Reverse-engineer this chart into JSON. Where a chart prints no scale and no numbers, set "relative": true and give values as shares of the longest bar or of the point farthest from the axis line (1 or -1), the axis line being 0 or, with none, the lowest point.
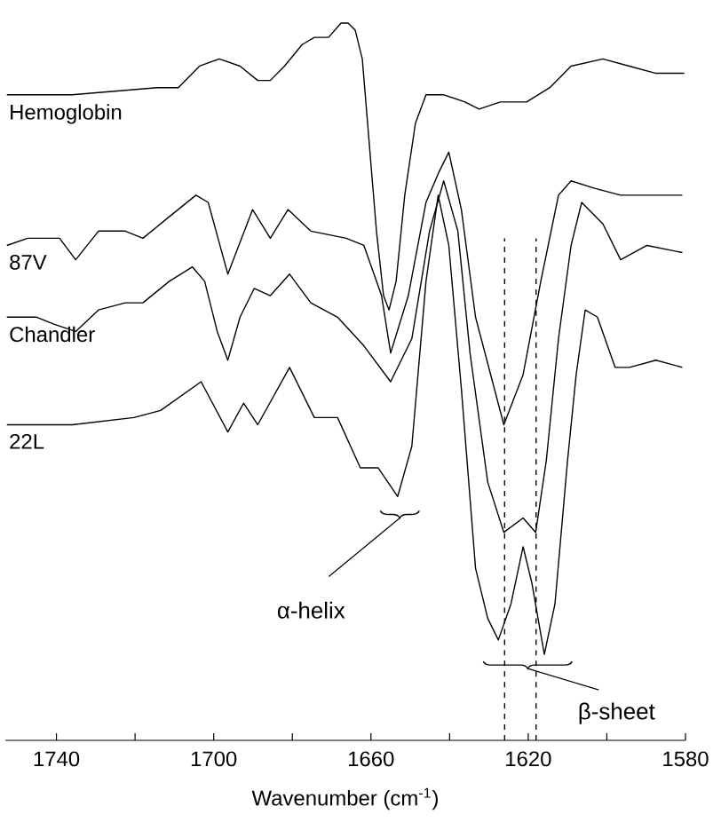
{
  "chart_data": {
    "type": "line",
    "relative": true,
    "xlabel": "Wavenumber (cm$^{-1}$)",
    "xlim": [
      1753,
      1580
    ],
    "xticks": [
      1740,
      {
        "value": 1720,
        "label": null
      },
      1700,
      {
        "value": 1680,
        "label": null
      },
      1660,
      {
        "value": 1640,
        "label": null
      },
      1620,
      {
        "value": 1600,
        "label": null
      },
      1580
    ],
    "series": [
      {
        "name": "Hemoglobin",
        "color": "#000000",
        "x": [
          1752.6,
          1736,
          1714.4,
          1709,
          1703.6,
          1698.6,
          1693.3,
          1688.8,
          1685.6,
          1682,
          1677.5,
          1674.4,
          1670.8,
          1667.6,
          1665.8,
          1664,
          1662.2,
          1660.4,
          1658.6,
          1656.8,
          1655.4,
          1653.6,
          1651.4,
          1648.7,
          1646,
          1641.5,
          1636.1,
          1632.5,
          1627.1,
          1620.4,
          1614.5,
          1609.1,
          1601,
          1594.3,
          1587.5,
          1580.3
        ],
        "values": [
          0.9,
          0.9,
          0.91,
          0.91,
          0.94,
          0.95,
          0.94,
          0.92,
          0.92,
          0.94,
          0.97,
          0.98,
          0.98,
          1.0,
          1.0,
          0.99,
          0.95,
          0.83,
          0.71,
          0.62,
          0.6,
          0.64,
          0.76,
          0.86,
          0.9,
          0.9,
          0.89,
          0.88,
          0.89,
          0.89,
          0.91,
          0.94,
          0.95,
          0.94,
          0.93,
          0.93
        ]
      },
      {
        "name": "87V",
        "color": "#000000",
        "x": [
          1752.6,
          1747.3,
          1742.8,
          1739.2,
          1735.1,
          1729.3,
          1722.5,
          1718,
          1711.3,
          1704.5,
          1701.4,
          1696.4,
          1690.1,
          1685.6,
          1681.1,
          1675.3,
          1666.3,
          1661.8,
          1657.3,
          1655,
          1650.5,
          1646,
          1642.9,
          1640.2,
          1637,
          1633.4,
          1626.2,
          1621.3,
          1616.8,
          1612.3,
          1609.1,
          1603.3,
          1596.5,
          1592,
          1580.8
        ],
        "values": [
          0.69,
          0.7,
          0.7,
          0.7,
          0.67,
          0.71,
          0.71,
          0.7,
          0.73,
          0.76,
          0.75,
          0.65,
          0.74,
          0.7,
          0.74,
          0.71,
          0.7,
          0.69,
          0.62,
          0.54,
          0.62,
          0.75,
          0.79,
          0.82,
          0.74,
          0.59,
          0.44,
          0.51,
          0.64,
          0.76,
          0.78,
          0.77,
          0.76,
          0.76,
          0.76
        ]
      },
      {
        "name": "Chandler",
        "color": "#000000",
        "x": [
          1752.6,
          1745,
          1740.5,
          1735.1,
          1729.3,
          1722.5,
          1718,
          1711.3,
          1705.4,
          1702.3,
          1699.1,
          1696.4,
          1693.3,
          1689.7,
          1685.6,
          1680.7,
          1675.3,
          1668.5,
          1661.8,
          1655,
          1649.6,
          1645.1,
          1641.5,
          1637.9,
          1634.8,
          1630.3,
          1626.2,
          1621.3,
          1618.1,
          1615.4,
          1612.3,
          1609.1,
          1606.4,
          1601,
          1596.5,
          1589.8,
          1580.8
        ],
        "values": [
          0.59,
          0.59,
          0.58,
          0.57,
          0.6,
          0.61,
          0.61,
          0.64,
          0.66,
          0.64,
          0.57,
          0.53,
          0.59,
          0.63,
          0.62,
          0.65,
          0.61,
          0.59,
          0.55,
          0.5,
          0.56,
          0.71,
          0.78,
          0.71,
          0.54,
          0.36,
          0.29,
          0.31,
          0.29,
          0.39,
          0.56,
          0.69,
          0.75,
          0.72,
          0.67,
          0.69,
          0.68
        ]
      },
      {
        "name": "22L",
        "color": "#000000",
        "x": [
          1752.6,
          1745,
          1736,
          1720.3,
          1713.5,
          1703.2,
          1696.4,
          1692.4,
          1688.8,
          1680.7,
          1674.4,
          1668.5,
          1662.7,
          1658.2,
          1653.2,
          1649.6,
          1646,
          1642.9,
          1640.2,
          1637,
          1633.4,
          1630.3,
          1627.6,
          1624.4,
          1621.3,
          1619.1,
          1615.9,
          1613.2,
          1610,
          1607.8,
          1605.5,
          1602.4,
          1597.9,
          1594.3,
          1587.5,
          1580.8
        ],
        "values": [
          0.44,
          0.44,
          0.44,
          0.45,
          0.46,
          0.5,
          0.43,
          0.47,
          0.44,
          0.52,
          0.45,
          0.45,
          0.38,
          0.38,
          0.34,
          0.41,
          0.64,
          0.76,
          0.69,
          0.49,
          0.24,
          0.17,
          0.14,
          0.19,
          0.27,
          0.22,
          0.12,
          0.19,
          0.39,
          0.51,
          0.6,
          0.59,
          0.52,
          0.52,
          0.53,
          0.52
        ]
      }
    ],
    "ref_lines": [
      {
        "axis": "x",
        "value": 1626,
        "line_style": "dashed"
      },
      {
        "axis": "x",
        "value": 1618,
        "line_style": "dashed"
      }
    ],
    "annotations": [
      "α-helix",
      "β-sheet"
    ]
  }
}
